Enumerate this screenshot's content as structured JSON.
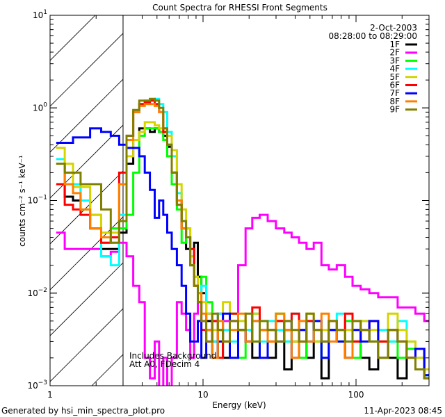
{
  "chart_data": {
    "type": "line",
    "title": "Count Spectra for RHESSI Front Segments",
    "xlabel": "Energy (keV)",
    "ylabel": "counts cm⁻² s⁻¹ keV⁻¹",
    "xscale": "log",
    "yscale": "log",
    "xlim": [
      1,
      300
    ],
    "ylim": [
      0.001,
      10
    ],
    "x_ticks": [
      {
        "value": 1,
        "label": "1"
      },
      {
        "value": 10,
        "label": "10"
      },
      {
        "value": 100,
        "label": "100"
      }
    ],
    "y_ticks": [
      {
        "value": 0.001,
        "base": "10",
        "exp": "−3"
      },
      {
        "value": 0.01,
        "base": "10",
        "exp": "−2"
      },
      {
        "value": 0.1,
        "base": "10",
        "exp": "−1"
      },
      {
        "value": 1,
        "base": "10",
        "exp": "0"
      },
      {
        "value": 10,
        "base": "10",
        "exp": "1"
      }
    ],
    "hatched_region_keV": [
      1,
      3
    ],
    "legend_placement": "top-right",
    "date": "2-Oct-2003",
    "time_range": "08:28:00 to 08:29:00",
    "annotations": [
      "Includes Background",
      "Att A0, FDecim 4"
    ],
    "x": [
      1.17,
      1.33,
      1.5,
      1.67,
      2.0,
      2.33,
      2.67,
      3.0,
      3.33,
      3.67,
      4.0,
      4.33,
      4.67,
      5.0,
      5.33,
      5.67,
      6.0,
      6.5,
      7.0,
      7.5,
      8.0,
      8.5,
      9.0,
      9.5,
      10,
      11,
      12,
      13,
      14,
      16,
      18,
      20,
      22,
      25,
      28,
      32,
      36,
      40,
      45,
      50,
      56,
      63,
      70,
      80,
      90,
      100,
      115,
      130,
      150,
      175,
      200,
      230,
      260,
      300
    ],
    "series": [
      {
        "name": "1F",
        "color": "#000000",
        "values": [
          0.25,
          0.11,
          0.1,
          0.1,
          0.05,
          0.03,
          0.03,
          0.045,
          0.25,
          0.45,
          0.6,
          0.6,
          0.55,
          0.6,
          0.55,
          0.5,
          0.38,
          0.2,
          0.09,
          0.05,
          0.03,
          0.02,
          0.035,
          0.015,
          0.01,
          0.005,
          0.003,
          0.004,
          0.002,
          0.005,
          0.004,
          0.003,
          0.002,
          0.004,
          0.002,
          0.005,
          0.0015,
          0.003,
          0.004,
          0.002,
          0.003,
          0.0012,
          0.004,
          0.003,
          0.002,
          0.003,
          0.002,
          0.0015,
          0.003,
          0.002,
          0.0012,
          0.002,
          0.0015,
          0.0012
        ]
      },
      {
        "name": "2F",
        "color": "#ff00ff",
        "values": [
          0.045,
          0.03,
          0.03,
          0.03,
          0.03,
          0.025,
          0.028,
          0.035,
          0.025,
          0.012,
          0.008,
          0.002,
          0.0012,
          0.003,
          0.0008,
          0.002,
          0.0008,
          0.002,
          0.008,
          0.006,
          0.004,
          0.002,
          0.006,
          0.008,
          0.005,
          0.006,
          0.005,
          0.006,
          0.005,
          0.005,
          0.02,
          0.05,
          0.065,
          0.07,
          0.06,
          0.05,
          0.045,
          0.04,
          0.035,
          0.03,
          0.035,
          0.02,
          0.018,
          0.02,
          0.015,
          0.012,
          0.011,
          0.01,
          0.009,
          0.009,
          0.007,
          0.007,
          0.006,
          0.005
        ]
      },
      {
        "name": "3F",
        "color": "#00ff00",
        "values": [
          0.25,
          0.15,
          0.15,
          0.08,
          0.07,
          0.035,
          0.05,
          0.05,
          0.07,
          0.2,
          0.5,
          0.6,
          0.6,
          0.6,
          0.55,
          0.45,
          0.3,
          0.15,
          0.08,
          0.035,
          0.05,
          0.02,
          0.012,
          0.01,
          0.015,
          0.008,
          0.002,
          0.004,
          0.003,
          0.006,
          0.002,
          0.004,
          0.003,
          0.005,
          0.004,
          0.006,
          0.003,
          0.004,
          0.002,
          0.005,
          0.003,
          0.002,
          0.004,
          0.003,
          0.005,
          0.002,
          0.004,
          0.003,
          0.002,
          0.003,
          0.002,
          0.0025,
          0.0015,
          0.0013
        ]
      },
      {
        "name": "4F",
        "color": "#00ffff",
        "values": [
          0.28,
          0.2,
          0.15,
          0.1,
          0.05,
          0.025,
          0.02,
          0.07,
          0.5,
          0.9,
          1.1,
          1.2,
          1.2,
          1.25,
          1.1,
          0.9,
          0.55,
          0.3,
          0.12,
          0.06,
          0.04,
          0.025,
          0.015,
          0.01,
          0.012,
          0.006,
          0.003,
          0.006,
          0.004,
          0.003,
          0.005,
          0.004,
          0.006,
          0.003,
          0.005,
          0.004,
          0.003,
          0.006,
          0.004,
          0.003,
          0.005,
          0.003,
          0.004,
          0.006,
          0.003,
          0.004,
          0.005,
          0.003,
          0.004,
          0.003,
          0.005,
          0.003,
          0.002,
          0.0013
        ]
      },
      {
        "name": "5F",
        "color": "#d4d400",
        "values": [
          0.37,
          0.25,
          0.14,
          0.14,
          0.07,
          0.045,
          0.045,
          0.15,
          0.3,
          0.45,
          0.55,
          0.7,
          0.7,
          0.65,
          0.6,
          0.55,
          0.5,
          0.35,
          0.15,
          0.08,
          0.05,
          0.025,
          0.015,
          0.01,
          0.008,
          0.006,
          0.004,
          0.003,
          0.008,
          0.004,
          0.005,
          0.003,
          0.006,
          0.004,
          0.003,
          0.005,
          0.004,
          0.003,
          0.004,
          0.006,
          0.003,
          0.004,
          0.005,
          0.003,
          0.004,
          0.003,
          0.005,
          0.004,
          0.003,
          0.006,
          0.004,
          0.003,
          0.002,
          0.0015
        ]
      },
      {
        "name": "6F",
        "color": "#ff0000",
        "values": [
          0.15,
          0.09,
          0.08,
          0.07,
          0.05,
          0.035,
          0.04,
          0.2,
          0.5,
          0.9,
          1.1,
          1.15,
          1.2,
          1.1,
          0.9,
          0.55,
          0.4,
          0.2,
          0.1,
          0.05,
          0.04,
          0.03,
          0.012,
          0.008,
          0.004,
          0.003,
          0.005,
          0.002,
          0.003,
          0.006,
          0.004,
          0.003,
          0.007,
          0.004,
          0.003,
          0.005,
          0.004,
          0.006,
          0.003,
          0.005,
          0.004,
          0.003,
          0.005,
          0.004,
          0.006,
          0.003,
          0.004,
          0.005,
          0.003,
          0.004,
          0.003,
          0.002,
          0.0025,
          0.0012
        ]
      },
      {
        "name": "7F",
        "color": "#0000ff",
        "values": [
          0.42,
          0.42,
          0.48,
          0.48,
          0.6,
          0.55,
          0.5,
          0.4,
          0.37,
          0.37,
          0.3,
          0.2,
          0.13,
          0.065,
          0.1,
          0.07,
          0.045,
          0.03,
          0.02,
          0.012,
          0.006,
          0.003,
          0.003,
          0.005,
          0.002,
          0.004,
          0.002,
          0.003,
          0.006,
          0.002,
          0.004,
          0.003,
          0.005,
          0.002,
          0.004,
          0.003,
          0.005,
          0.002,
          0.004,
          0.003,
          0.005,
          0.002,
          0.004,
          0.003,
          0.002,
          0.004,
          0.003,
          0.005,
          0.002,
          0.004,
          0.003,
          0.002,
          0.0025,
          0.0013
        ]
      },
      {
        "name": "8F",
        "color": "#ff8000",
        "values": [
          0.25,
          0.15,
          0.12,
          0.08,
          0.05,
          0.04,
          0.035,
          0.15,
          0.45,
          0.9,
          1.05,
          1.1,
          1.1,
          1.05,
          0.9,
          0.6,
          0.4,
          0.2,
          0.1,
          0.05,
          0.04,
          0.02,
          0.012,
          0.01,
          0.006,
          0.004,
          0.002,
          0.005,
          0.003,
          0.004,
          0.006,
          0.003,
          0.005,
          0.004,
          0.003,
          0.006,
          0.004,
          0.002,
          0.005,
          0.003,
          0.004,
          0.006,
          0.003,
          0.004,
          0.002,
          0.005,
          0.004,
          0.003,
          0.002,
          0.004,
          0.003,
          0.002,
          0.0015,
          0.0012
        ]
      },
      {
        "name": "9F",
        "color": "#808000",
        "values": [
          0.25,
          0.2,
          0.2,
          0.15,
          0.15,
          0.08,
          0.035,
          0.06,
          0.5,
          0.95,
          1.2,
          1.2,
          1.25,
          1.2,
          1.0,
          0.6,
          0.4,
          0.2,
          0.09,
          0.06,
          0.04,
          0.02,
          0.012,
          0.008,
          0.005,
          0.003,
          0.006,
          0.004,
          0.003,
          0.005,
          0.004,
          0.006,
          0.003,
          0.005,
          0.004,
          0.003,
          0.005,
          0.004,
          0.003,
          0.006,
          0.004,
          0.003,
          0.005,
          0.004,
          0.003,
          0.005,
          0.004,
          0.003,
          0.002,
          0.004,
          0.003,
          0.002,
          0.0015,
          0.0012
        ]
      }
    ]
  },
  "footer": {
    "generated_by": "Generated by hsi_min_spectra_plot.pro",
    "timestamp": "11-Apr-2023 08:45"
  }
}
